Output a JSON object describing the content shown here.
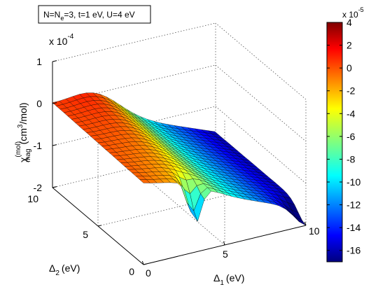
{
  "annotation": {
    "text_prefix": "N=N",
    "text_sub": "e",
    "text_suffix": "=3, t=1 eV, U=4 eV"
  },
  "z_axis": {
    "multiplier_base": "x 10",
    "multiplier_exp": "-4",
    "label_symbol": "χ",
    "label_sup": "(mol)",
    "label_sub": "mag",
    "label_unit_prefix": "(cm",
    "label_unit_exp": "3",
    "label_unit_suffix": "/mol)",
    "ticks": [
      "1",
      "0",
      "-1",
      "-2"
    ]
  },
  "x_axis": {
    "label_symbol": "Δ",
    "label_sub": "1",
    "label_unit": "(eV)",
    "ticks": [
      "0",
      "5",
      "10"
    ]
  },
  "y_axis": {
    "label_symbol": "Δ",
    "label_sub": "2",
    "label_unit": "(eV)",
    "ticks": [
      "0",
      "5",
      "10"
    ]
  },
  "colorbar": {
    "multiplier_base": "x 10",
    "multiplier_exp": "-5",
    "ticks": [
      "4",
      "2",
      "0",
      "-2",
      "-4",
      "-6",
      "-8",
      "-10",
      "-12",
      "-14",
      "-16"
    ],
    "range": [
      -17,
      4
    ],
    "colormap": "jet"
  },
  "chart_data": {
    "type": "surface",
    "x_label": "Δ1 (eV)",
    "y_label": "Δ2 (eV)",
    "z_label": "χ_mag^(mol) (cm^3/mol)",
    "x_range": [
      0,
      10
    ],
    "y_range": [
      0,
      10
    ],
    "z_range": [
      -0.0002,
      0.0001
    ],
    "grid": true,
    "z_at_corners": {
      "x0_y0": -1e-05,
      "x0_y10": -1e-05,
      "x10_y0": -0.00016,
      "x10_y10": -0.00016
    },
    "z_peak": 4e-05
  }
}
